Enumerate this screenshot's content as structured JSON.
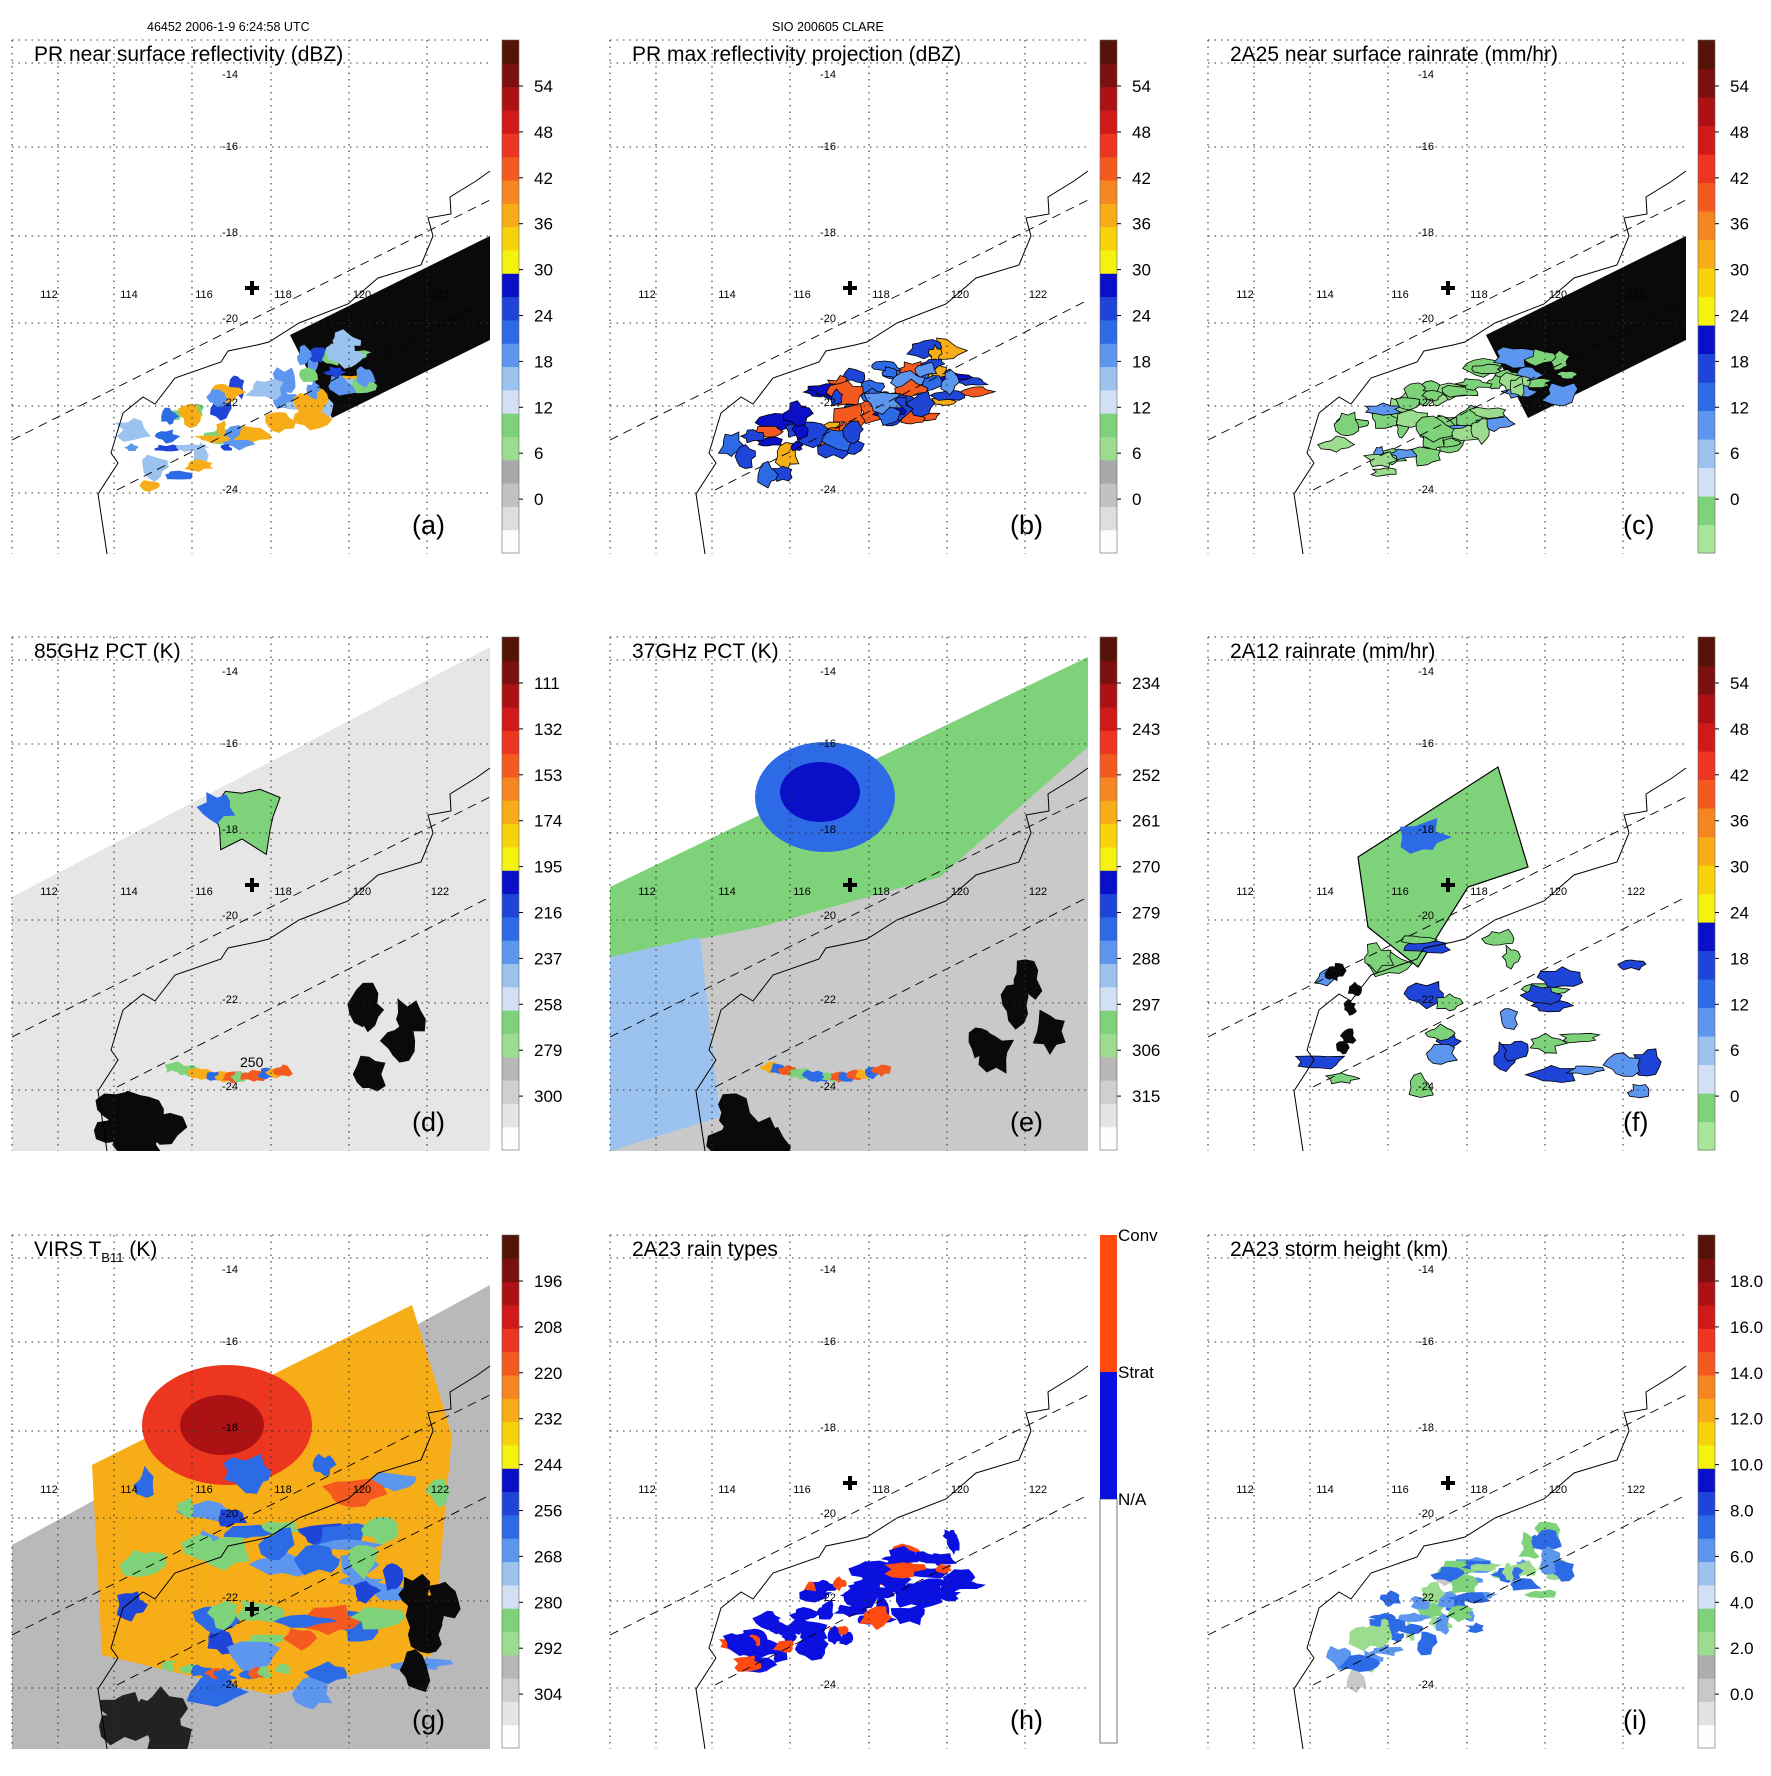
{
  "header": {
    "orbit": "46452 2006-1-9 6:24:58 UTC",
    "storm": "SIO 200605 CLARE"
  },
  "lat_labels": [
    "-14",
    "-16",
    "-18",
    "-20",
    "-22",
    "-24"
  ],
  "lon_labels": [
    "112",
    "114",
    "116",
    "118",
    "120",
    "122"
  ],
  "panels": [
    {
      "id": "a",
      "title": "PR near surface reflectivity (dBZ)",
      "letter": "(a)",
      "cb": "dbz",
      "scale": [
        "54",
        "48",
        "42",
        "36",
        "30",
        "24",
        "18",
        "12",
        "6",
        "0"
      ]
    },
    {
      "id": "b",
      "title": "PR max reflectivity projection (dBZ)",
      "letter": "(b)",
      "cb": "dbz",
      "scale": [
        "54",
        "48",
        "42",
        "36",
        "30",
        "24",
        "18",
        "12",
        "6",
        "0"
      ]
    },
    {
      "id": "c",
      "title": "2A25 near surface rainrate (mm/hr)",
      "letter": "(c)",
      "cb": "rain",
      "scale": [
        "54",
        "48",
        "42",
        "36",
        "30",
        "24",
        "18",
        "12",
        "6",
        "0"
      ]
    },
    {
      "id": "d",
      "title": "85GHz PCT (K)",
      "letter": "(d)",
      "cb": "pct",
      "scale": [
        "111",
        "132",
        "153",
        "174",
        "195",
        "216",
        "237",
        "258",
        "279",
        "300"
      ]
    },
    {
      "id": "e",
      "title": "37GHz PCT (K)",
      "letter": "(e)",
      "cb": "pct",
      "scale": [
        "234",
        "243",
        "252",
        "261",
        "270",
        "279",
        "288",
        "297",
        "306",
        "315"
      ]
    },
    {
      "id": "f",
      "title": "2A12 rainrate (mm/hr)",
      "letter": "(f)",
      "cb": "rain",
      "scale": [
        "54",
        "48",
        "42",
        "36",
        "30",
        "24",
        "18",
        "12",
        "6",
        "0"
      ]
    },
    {
      "id": "g",
      "title": "VIRS T",
      "sub": "B11",
      "title_tail": " (K)",
      "letter": "(g)",
      "cb": "pct",
      "scale": [
        "196",
        "208",
        "220",
        "232",
        "244",
        "256",
        "268",
        "280",
        "292",
        "304"
      ]
    },
    {
      "id": "h",
      "title": "2A23 rain types",
      "letter": "(h)",
      "cb": "types",
      "scale": [
        "Conv",
        "Strat",
        "N/A"
      ]
    },
    {
      "id": "i",
      "title": "2A23 storm height (km)",
      "letter": "(i)",
      "cb": "height",
      "scale": [
        "18.0",
        "16.0",
        "14.0",
        "12.0",
        "10.0",
        "8.0",
        "6.0",
        "4.0",
        "2.0",
        "0.0"
      ]
    }
  ],
  "contour_label": "250",
  "colors": {
    "dbz": [
      "#fdfdfd",
      "#dedede",
      "#c2c2c2",
      "#a9a9a9",
      "#9bdc8f",
      "#7ed27a",
      "#d3e0f4",
      "#9cc3ef",
      "#5d96ee",
      "#2d6ae6",
      "#1f45d8",
      "#0a10c8",
      "#f4f20e",
      "#f7d30c",
      "#f7ad17",
      "#f68621",
      "#f45a20",
      "#ed3620",
      "#d1191a",
      "#ac1213",
      "#7c1010",
      "#541408"
    ],
    "rain": [
      "#a8e69a",
      "#7ed27a",
      "#d3e0f4",
      "#9cc3ef",
      "#5d96ee",
      "#2d6ae6",
      "#1f45d8",
      "#0a10c8",
      "#f4f20e",
      "#f7d30c",
      "#f7ad17",
      "#f68621",
      "#f45a20",
      "#ed3620",
      "#d1191a",
      "#ac1213",
      "#7c1010",
      "#541408"
    ],
    "pct": [
      "#fdfdfd",
      "#e5e5e5",
      "#cfcfcf",
      "#b7b7b7",
      "#9bdc8f",
      "#7ed27a",
      "#d3e0f4",
      "#9cc3ef",
      "#5d96ee",
      "#2d6ae6",
      "#1f45d8",
      "#0a10c8",
      "#f4f20e",
      "#f7d30c",
      "#f7ad17",
      "#f68621",
      "#f45a20",
      "#ed3620",
      "#d1191a",
      "#ac1213",
      "#7c1010",
      "#541408"
    ],
    "height": [
      "#fdfdfd",
      "#e2e2e2",
      "#c8c8c8",
      "#aeaeae",
      "#9bdc8f",
      "#7ed27a",
      "#d3e0f4",
      "#9cc3ef",
      "#5d96ee",
      "#2d6ae6",
      "#1f45d8",
      "#0a10c8",
      "#f4f20e",
      "#f7d30c",
      "#f7ad17",
      "#f68621",
      "#f45a20",
      "#ed3620",
      "#d1191a",
      "#ac1213",
      "#7c1010",
      "#541408"
    ],
    "types": [
      "#ffffff",
      "#0a10e0",
      "#ff4a10"
    ]
  }
}
